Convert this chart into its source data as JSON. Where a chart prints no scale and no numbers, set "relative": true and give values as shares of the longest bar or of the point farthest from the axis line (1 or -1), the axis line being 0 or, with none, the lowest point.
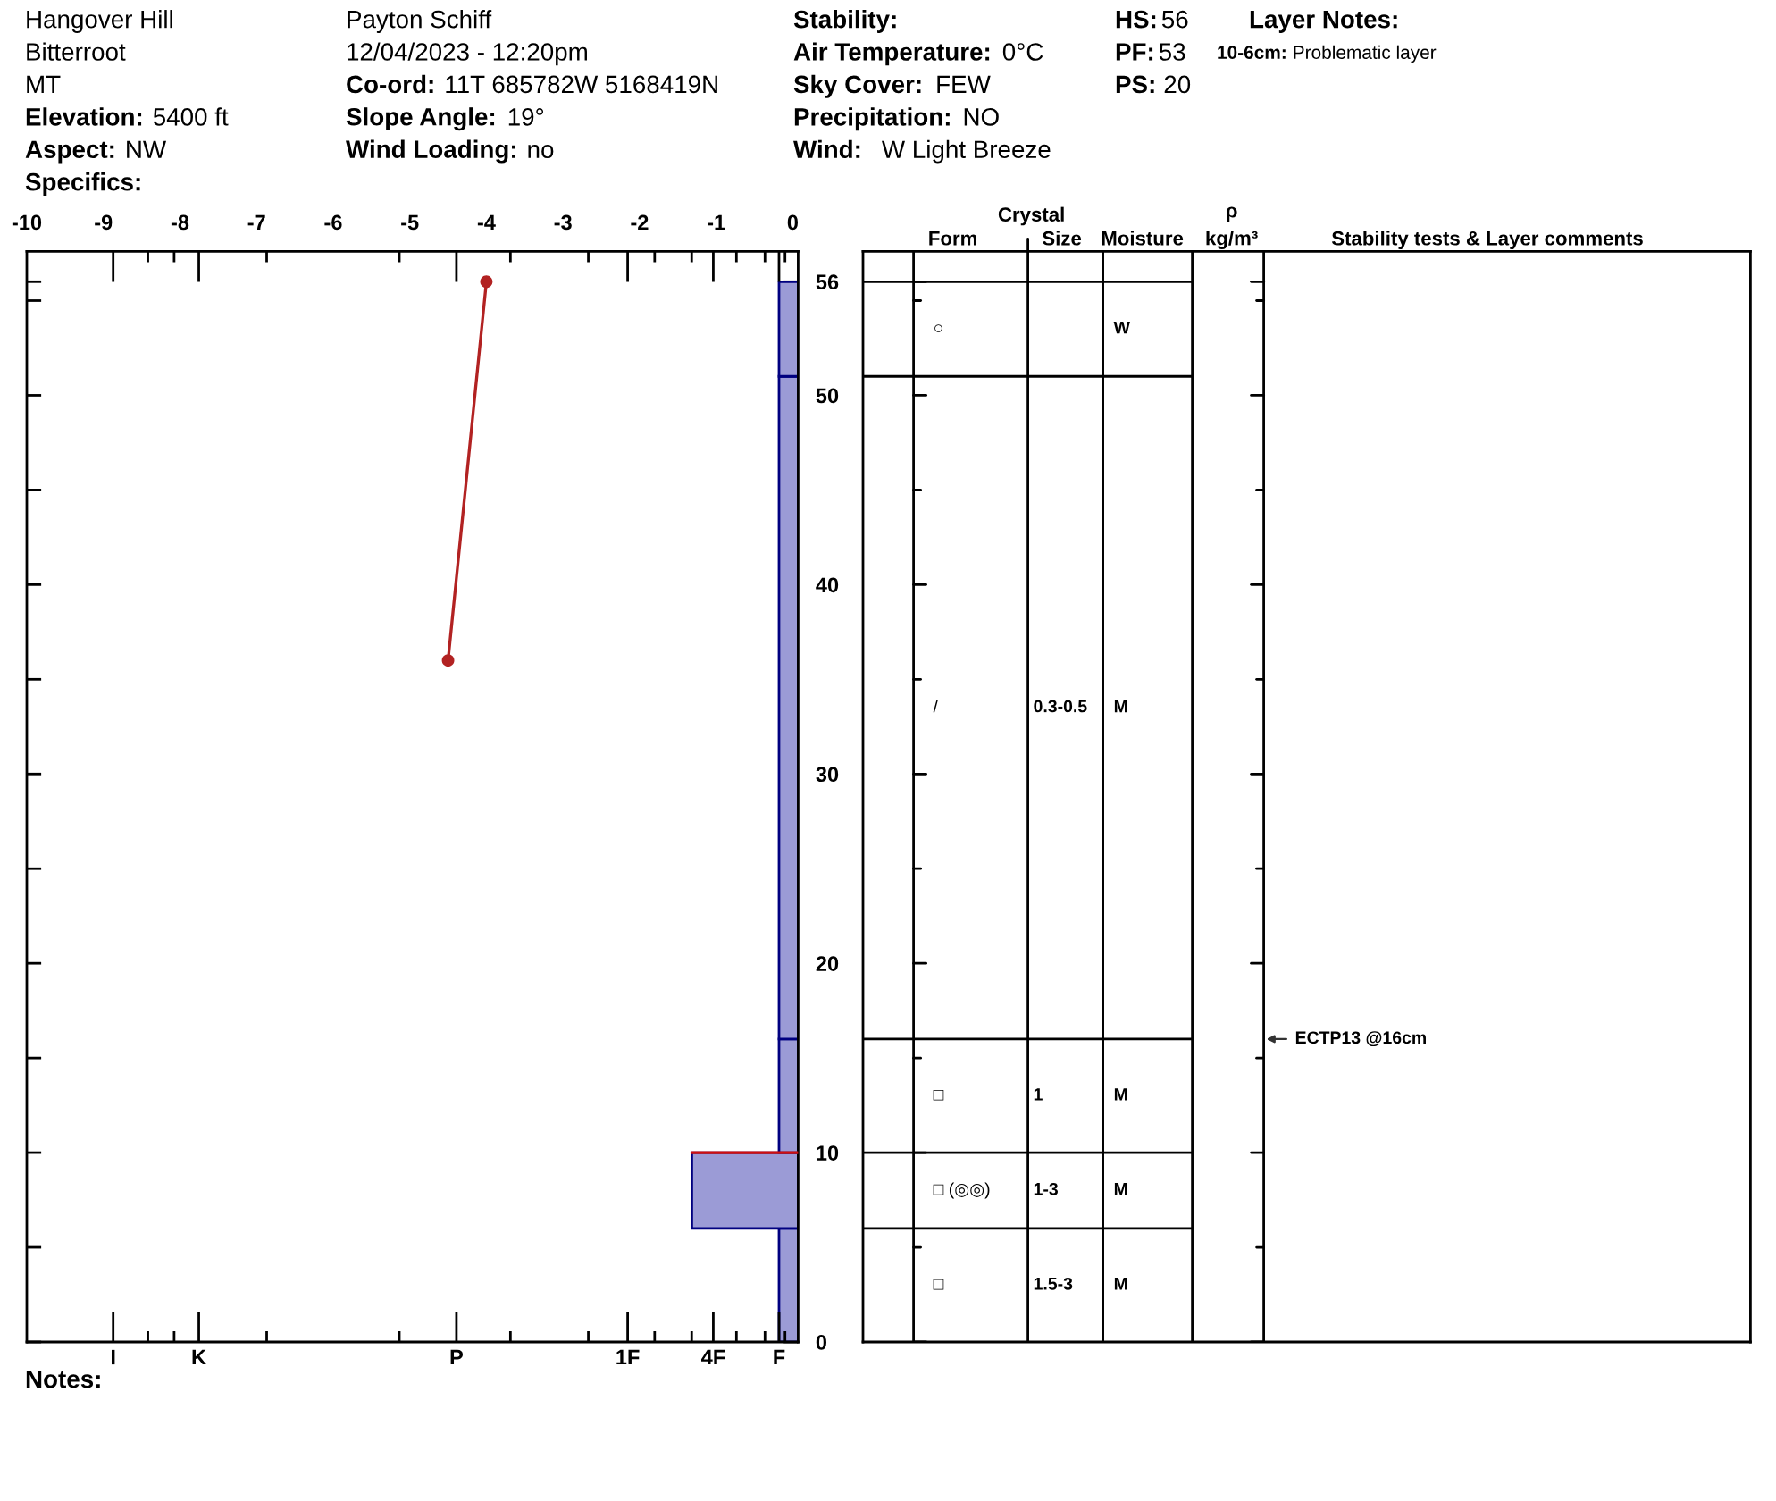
{
  "chart_data": [
    {
      "type": "other",
      "annotations": [
        "Hangover Hill",
        "Bitterroot",
        "MT",
        "Elevation:",
        "5400 ft",
        "Aspect:",
        "NW",
        "Specifics:",
        "Payton Schiff",
        "12/04/2023 - 12:20pm",
        "Co-ord:",
        "11T 685782W 5168419N",
        "Slope Angle:",
        "19°",
        "Wind Loading:",
        "no",
        "Stability:",
        "Air Temperature:",
        "0°C",
        "Sky Cover:",
        "FEW",
        "Precipitation:",
        "NO",
        "Wind:",
        "W Light Breeze",
        "HS:",
        "56",
        "PF:",
        "53",
        "PS:",
        "20",
        "Layer Notes:",
        "10-6cm:",
        "Problematic layer"
      ]
    },
    {
      "type": "histogram",
      "orientation": "horizontal",
      "relative": true,
      "bins": [
        0,
        6,
        10,
        16,
        51,
        56
      ],
      "values": [
        -0.18,
        -1,
        -0.18,
        -0.18,
        -0.18
      ],
      "color": "#9b9bd6",
      "ylim": [
        0,
        57.6
      ],
      "yticks": [
        0,
        {
          "value": 5,
          "label": null
        },
        10,
        {
          "value": 15,
          "label": null
        },
        20,
        {
          "value": 25,
          "label": null
        },
        30,
        {
          "value": 35,
          "label": null
        },
        40,
        {
          "value": 45,
          "label": null
        },
        50,
        {
          "value": 55,
          "label": null
        },
        56
      ],
      "series": [
        {
          "type": "line",
          "x": [
            10,
            10
          ],
          "values": [
            -1,
            0
          ],
          "color": "#d01010"
        }
      ],
      "annotations": [
        "I",
        "K",
        "P",
        "1F",
        "4F",
        "F",
        "Notes:"
      ]
    },
    {
      "type": "line",
      "x": [
        -4.0,
        -4.5
      ],
      "values": [
        56,
        36
      ],
      "color": "#b22222",
      "marker": "circle",
      "xlim": [
        -10,
        0.07
      ],
      "xticks": [
        -10,
        -9,
        -8,
        -7,
        -6,
        -5,
        -4,
        -3,
        -2,
        -1,
        0
      ],
      "ylim": [
        0,
        57.6
      ],
      "tick_labels": "x"
    },
    {
      "type": "other",
      "annotations": [
        "Crystal",
        "Form",
        "Size",
        "Moisture",
        "ρ",
        "kg/m³",
        "Stability tests & Layer comments",
        "○",
        "W",
        "/",
        "0.3-0.5",
        "M",
        "□",
        "1",
        "M",
        "□ (◎◎)",
        "1-3",
        "M",
        "□",
        "1.5-3",
        "M",
        "ECTP13 @16cm"
      ]
    }
  ]
}
